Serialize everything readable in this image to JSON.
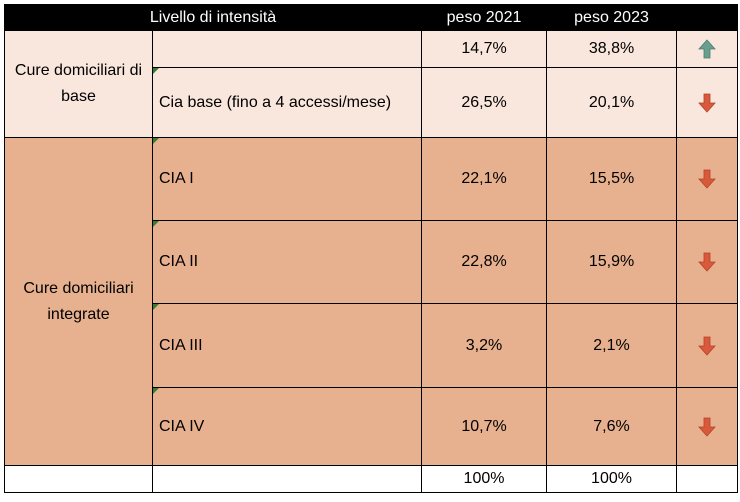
{
  "header": {
    "level": "Livello di intensità",
    "col2021": "peso 2021",
    "col2023": "peso 2023"
  },
  "groups": {
    "base": "Cure domiciliari di base",
    "integrate": "Cure domiciliari integrate"
  },
  "rows": [
    {
      "level": "",
      "w2021": "14,7%",
      "w2023": "38,8%",
      "trend": "up-arrow-icon"
    },
    {
      "level": "Cia base (fino a 4 accessi/mese)",
      "w2021": "26,5%",
      "w2023": "20,1%",
      "trend": "down-arrow-icon"
    },
    {
      "level": "CIA I",
      "w2021": "22,1%",
      "w2023": "15,5%",
      "trend": "down-arrow-icon"
    },
    {
      "level": "CIA II",
      "w2021": "22,8%",
      "w2023": "15,9%",
      "trend": "down-arrow-icon"
    },
    {
      "level": "CIA III",
      "w2021": "3,2%",
      "w2023": "2,1%",
      "trend": "down-arrow-icon"
    },
    {
      "level": "CIA IV",
      "w2021": "10,7%",
      "w2023": "7,6%",
      "trend": "down-arrow-icon"
    }
  ],
  "totals": {
    "w2021": "100%",
    "w2023": "100%"
  },
  "colors": {
    "header_bg": "#000000",
    "light_row": "#f9e6dc",
    "dark_row": "#e7b08e",
    "up_arrow": "#6a9e8e",
    "down_arrow": "#d9593d",
    "comment_marker": "#3a7d2c"
  }
}
